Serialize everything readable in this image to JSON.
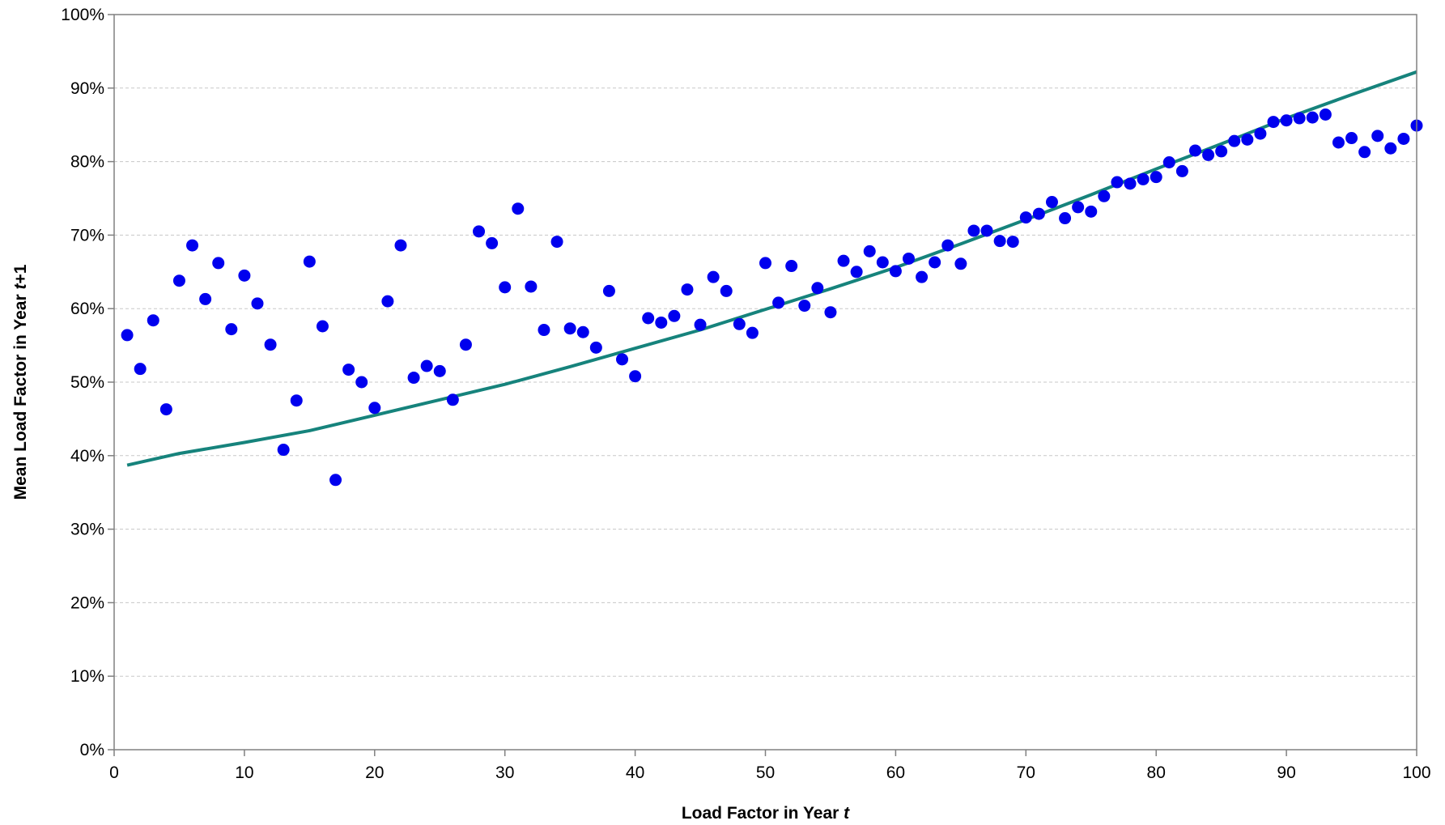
{
  "chart_data": {
    "type": "scatter",
    "xlabel_parts": [
      "Load Factor in Year ",
      "t"
    ],
    "ylabel_parts": [
      "Mean Load Factor in Year ",
      "t",
      "+1"
    ],
    "xlim": [
      0,
      100
    ],
    "ylim": [
      0,
      1
    ],
    "x_ticks": [
      0,
      10,
      20,
      30,
      40,
      50,
      60,
      70,
      80,
      90,
      100
    ],
    "x_tick_labels": [
      "0",
      "10",
      "20",
      "30",
      "40",
      "50",
      "60",
      "70",
      "80",
      "90",
      "100"
    ],
    "y_ticks": [
      0,
      0.1,
      0.2,
      0.3,
      0.4,
      0.5,
      0.6,
      0.7,
      0.8,
      0.9,
      1.0
    ],
    "y_tick_labels": [
      "0%",
      "10%",
      "20%",
      "30%",
      "40%",
      "50%",
      "60%",
      "70%",
      "80%",
      "90%",
      "100%"
    ],
    "grid": "horizontal dashed",
    "colors": {
      "points": "#0000ee",
      "fit_line": "#16837c",
      "grid": "#c8c8c8",
      "axis": "#808080"
    },
    "series": [
      {
        "type": "scatter",
        "x": [
          1,
          2,
          3,
          4,
          5,
          6,
          7,
          8,
          9,
          10,
          11,
          12,
          13,
          14,
          15,
          16,
          17,
          18,
          19,
          20,
          21,
          22,
          23,
          24,
          25,
          26,
          27,
          28,
          29,
          30,
          31,
          32,
          33,
          34,
          35,
          36,
          37,
          38,
          39,
          40,
          41,
          42,
          43,
          44,
          45,
          46,
          47,
          48,
          49,
          50,
          51,
          52,
          53,
          54,
          55,
          56,
          57,
          58,
          59,
          60,
          61,
          62,
          63,
          64,
          65,
          66,
          67,
          68,
          69,
          70,
          71,
          72,
          73,
          74,
          75,
          76,
          77,
          78,
          79,
          80,
          81,
          82,
          83,
          84,
          85,
          86,
          87,
          88,
          89,
          90,
          91,
          92,
          93,
          94,
          95,
          96,
          97,
          98,
          99,
          100
        ],
        "y": [
          0.564,
          0.518,
          0.584,
          0.463,
          0.638,
          0.686,
          0.613,
          0.662,
          0.572,
          0.645,
          0.607,
          0.551,
          0.408,
          0.475,
          0.664,
          0.576,
          0.367,
          0.517,
          0.5,
          0.465,
          0.61,
          0.686,
          0.506,
          0.522,
          0.515,
          0.476,
          0.551,
          0.705,
          0.689,
          0.629,
          0.736,
          0.63,
          0.571,
          0.691,
          0.573,
          0.568,
          0.547,
          0.624,
          0.531,
          0.508,
          0.587,
          0.581,
          0.59,
          0.626,
          0.578,
          0.643,
          0.624,
          0.579,
          0.567,
          0.662,
          0.608,
          0.658,
          0.604,
          0.628,
          0.595,
          0.665,
          0.65,
          0.678,
          0.663,
          0.651,
          0.668,
          0.643,
          0.663,
          0.686,
          0.661,
          0.706,
          0.706,
          0.692,
          0.691,
          0.724,
          0.729,
          0.745,
          0.723,
          0.738,
          0.732,
          0.753,
          0.772,
          0.77,
          0.776,
          0.779,
          0.799,
          0.787,
          0.815,
          0.809,
          0.814,
          0.828,
          0.83,
          0.838,
          0.854,
          0.856,
          0.859,
          0.86,
          0.864,
          0.826,
          0.832,
          0.813,
          0.835,
          0.818,
          0.831,
          0.849
        ]
      },
      {
        "type": "line",
        "x": [
          1,
          5,
          10,
          15,
          20,
          25,
          30,
          35,
          40,
          45,
          50,
          55,
          60,
          65,
          70,
          75,
          80,
          85,
          90,
          95,
          100
        ],
        "y": [
          0.387,
          0.403,
          0.418,
          0.434,
          0.455,
          0.476,
          0.497,
          0.521,
          0.546,
          0.571,
          0.599,
          0.627,
          0.656,
          0.688,
          0.721,
          0.755,
          0.79,
          0.824,
          0.859,
          0.891,
          0.922
        ]
      }
    ]
  }
}
